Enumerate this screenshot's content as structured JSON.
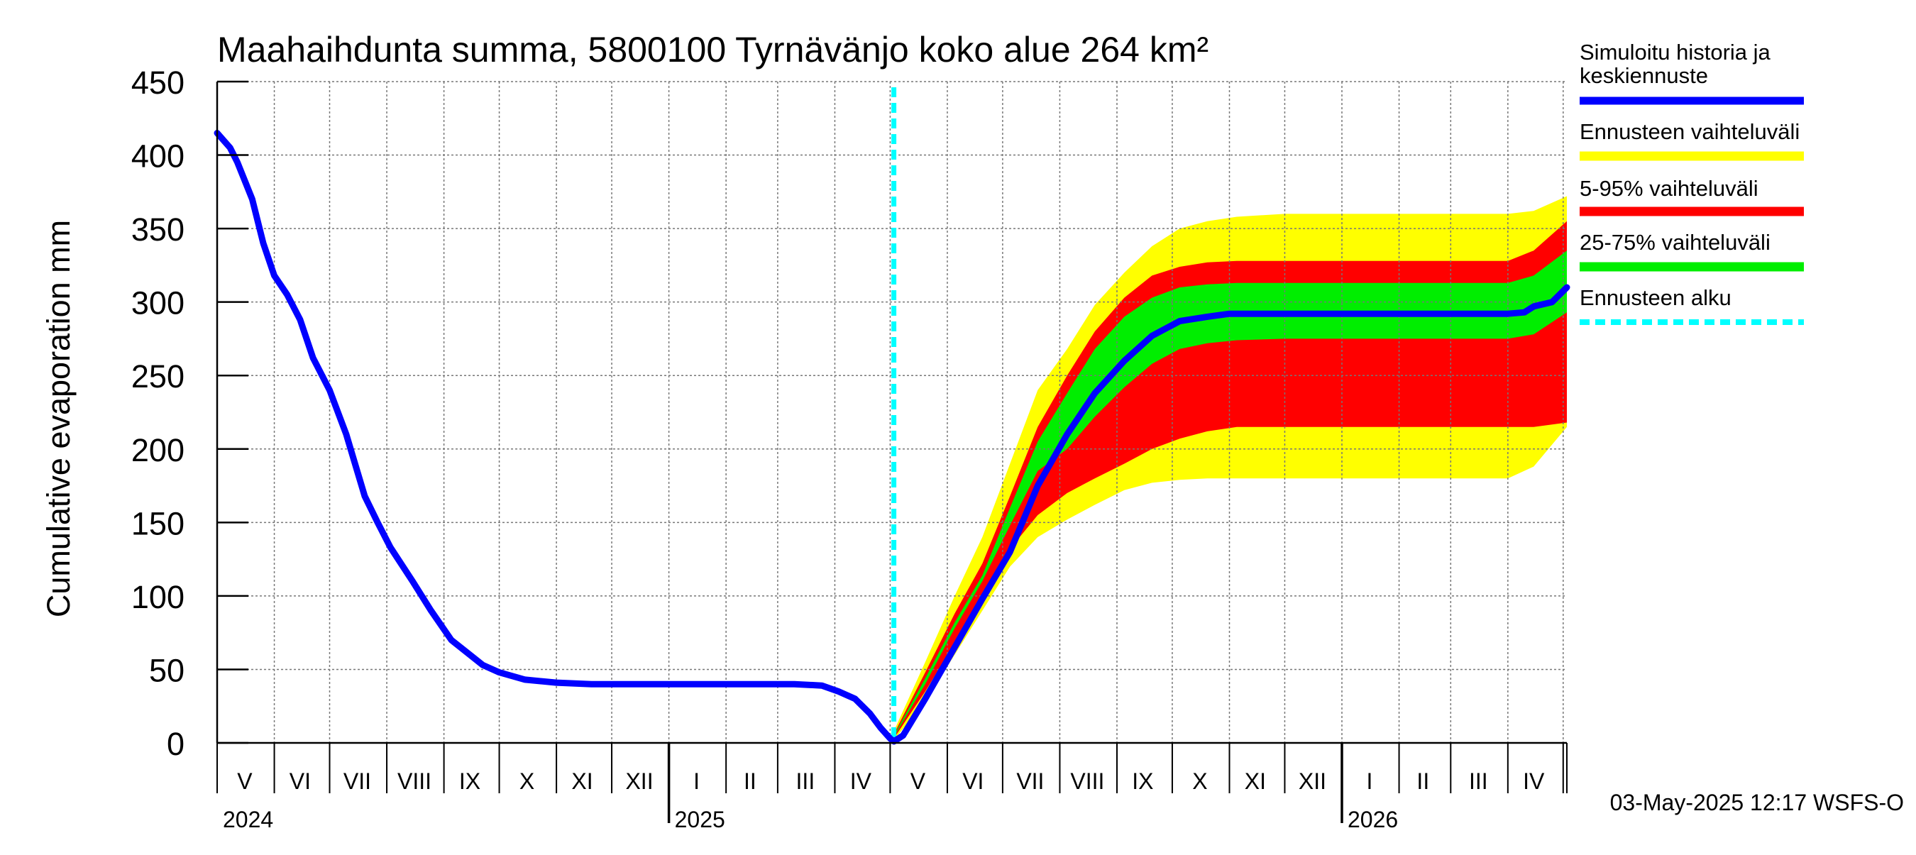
{
  "chart_data": {
    "type": "area",
    "title": "Maahaihdunta summa, 5800100 Tyrnävänjo koko alue 264 km²",
    "ylabel": "Cumulative evaporation   mm",
    "xlabel": "",
    "ylim": [
      0,
      450
    ],
    "yticks": [
      0,
      50,
      100,
      150,
      200,
      250,
      300,
      350,
      400,
      450
    ],
    "grid": true,
    "xlim": [
      "2024-05-01",
      "2026-05-03"
    ],
    "forecast_start": "2025-05-03",
    "month_labels": [
      {
        "label": "V",
        "date": "2024-05-16"
      },
      {
        "label": "VI",
        "date": "2024-06-15"
      },
      {
        "label": "VII",
        "date": "2024-07-16"
      },
      {
        "label": "VIII",
        "date": "2024-08-16"
      },
      {
        "label": "IX",
        "date": "2024-09-15"
      },
      {
        "label": "X",
        "date": "2024-10-16"
      },
      {
        "label": "XI",
        "date": "2024-11-15"
      },
      {
        "label": "XII",
        "date": "2024-12-16"
      },
      {
        "label": "I",
        "date": "2025-01-16"
      },
      {
        "label": "II",
        "date": "2025-02-14"
      },
      {
        "label": "III",
        "date": "2025-03-16"
      },
      {
        "label": "IV",
        "date": "2025-04-15"
      },
      {
        "label": "V",
        "date": "2025-05-16"
      },
      {
        "label": "VI",
        "date": "2025-06-15"
      },
      {
        "label": "VII",
        "date": "2025-07-16"
      },
      {
        "label": "VIII",
        "date": "2025-08-16"
      },
      {
        "label": "IX",
        "date": "2025-09-15"
      },
      {
        "label": "X",
        "date": "2025-10-16"
      },
      {
        "label": "XI",
        "date": "2025-11-15"
      },
      {
        "label": "XII",
        "date": "2025-12-16"
      },
      {
        "label": "I",
        "date": "2026-01-16"
      },
      {
        "label": "II",
        "date": "2026-02-14"
      },
      {
        "label": "III",
        "date": "2026-03-16"
      },
      {
        "label": "IV",
        "date": "2026-04-15"
      }
    ],
    "year_labels": [
      {
        "label": "2024",
        "date": "2024-05-01"
      },
      {
        "label": "2025",
        "date": "2025-01-01"
      },
      {
        "label": "2026",
        "date": "2026-01-01"
      }
    ],
    "bands": {
      "x": [
        "2025-05-03",
        "2025-05-20",
        "2025-06-05",
        "2025-06-20",
        "2025-07-05",
        "2025-07-20",
        "2025-08-05",
        "2025-08-20",
        "2025-09-05",
        "2025-09-20",
        "2025-10-05",
        "2025-10-20",
        "2025-11-05",
        "2025-12-01",
        "2026-01-01",
        "2026-02-01",
        "2026-03-01",
        "2026-04-01",
        "2026-04-15",
        "2026-05-03"
      ],
      "ennuste_min": [
        2,
        28,
        60,
        90,
        120,
        140,
        152,
        162,
        172,
        177,
        179,
        180,
        180,
        180,
        180,
        180,
        180,
        180,
        188,
        215
      ],
      "ennuste_max": [
        8,
        55,
        100,
        140,
        190,
        240,
        268,
        298,
        320,
        338,
        350,
        355,
        358,
        360,
        360,
        360,
        360,
        360,
        362,
        372
      ],
      "p5": [
        3,
        35,
        68,
        97,
        132,
        155,
        170,
        180,
        190,
        200,
        207,
        212,
        215,
        215,
        215,
        215,
        215,
        215,
        215,
        218
      ],
      "p95": [
        6,
        48,
        88,
        122,
        168,
        215,
        250,
        280,
        303,
        318,
        324,
        327,
        328,
        328,
        328,
        328,
        328,
        328,
        335,
        355
      ],
      "p25": [
        4,
        40,
        78,
        110,
        148,
        185,
        200,
        222,
        242,
        258,
        268,
        272,
        274,
        275,
        275,
        275,
        275,
        275,
        278,
        293
      ],
      "p75": [
        5,
        44,
        82,
        114,
        160,
        205,
        238,
        268,
        290,
        303,
        310,
        312,
        313,
        313,
        313,
        313,
        313,
        313,
        318,
        335
      ]
    },
    "series": [
      {
        "name": "Simuloitu historia ja keskiennuste",
        "color": "#0000ff",
        "x": [
          "2024-05-01",
          "2024-05-08",
          "2024-05-12",
          "2024-05-20",
          "2024-05-26",
          "2024-06-01",
          "2024-06-08",
          "2024-06-15",
          "2024-06-22",
          "2024-07-01",
          "2024-07-10",
          "2024-07-20",
          "2024-07-27",
          "2024-08-03",
          "2024-08-15",
          "2024-08-25",
          "2024-09-05",
          "2024-09-15",
          "2024-09-22",
          "2024-10-01",
          "2024-10-15",
          "2024-11-01",
          "2024-11-20",
          "2024-12-15",
          "2025-01-15",
          "2025-02-15",
          "2025-03-10",
          "2025-03-25",
          "2025-04-03",
          "2025-04-12",
          "2025-04-20",
          "2025-04-26",
          "2025-05-01",
          "2025-05-03",
          "2025-05-08",
          "2025-05-20",
          "2025-06-05",
          "2025-06-20",
          "2025-07-05",
          "2025-07-20",
          "2025-08-05",
          "2025-08-20",
          "2025-09-05",
          "2025-09-20",
          "2025-10-05",
          "2025-10-20",
          "2025-11-01",
          "2025-12-01",
          "2026-01-01",
          "2026-02-01",
          "2026-03-01",
          "2026-04-01",
          "2026-04-10",
          "2026-04-15",
          "2026-04-25",
          "2026-05-03"
        ],
        "values": [
          415,
          405,
          395,
          370,
          340,
          318,
          305,
          288,
          262,
          240,
          210,
          168,
          150,
          133,
          110,
          90,
          70,
          60,
          53,
          48,
          43,
          41,
          40,
          40,
          40,
          40,
          40,
          39,
          35,
          30,
          20,
          10,
          3,
          1,
          5,
          30,
          65,
          98,
          130,
          175,
          210,
          238,
          260,
          277,
          287,
          290,
          292,
          292,
          292,
          292,
          292,
          292,
          293,
          297,
          300,
          310
        ]
      }
    ],
    "legend": {
      "placement": "right",
      "entries": [
        {
          "label": "Simuloitu historia ja keskiennuste",
          "color": "#0000ff",
          "style": "solid"
        },
        {
          "label": "Ennusteen vaihteluväli",
          "color": "#ffff00",
          "style": "solid"
        },
        {
          "label": "5-95% vaihteluväli",
          "color": "#ff0000",
          "style": "solid"
        },
        {
          "label": "25-75% vaihteluväli",
          "color": "#00ee00",
          "style": "solid"
        },
        {
          "label": "Ennusteen alku",
          "color": "#00ffff",
          "style": "dashed"
        }
      ]
    },
    "footer": "03-May-2025 12:17 WSFS-O"
  }
}
